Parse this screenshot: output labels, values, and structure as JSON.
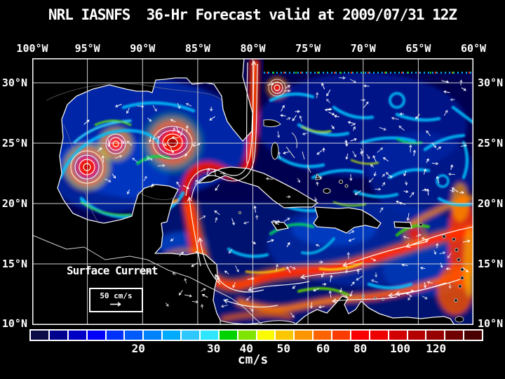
{
  "title": "NRL IASNFS  36-Hr Forecast valid at 2009/07/31 12Z",
  "colors": {
    "background": "#000000",
    "ocean": "#000050",
    "land": "#000000",
    "coastline": "#f0f0f0",
    "island_outline": "#b0b0b0",
    "grid": "#dcdcdc",
    "arrows": "#ffffff",
    "text": "#ffffff",
    "colorbar_border": "#ffffff"
  },
  "axes": {
    "top": [
      {
        "label": "100°W",
        "pct": 0
      },
      {
        "label": "95°W",
        "pct": 12.5
      },
      {
        "label": "90°W",
        "pct": 25
      },
      {
        "label": "85°W",
        "pct": 37.5
      },
      {
        "label": "80°W",
        "pct": 50
      },
      {
        "label": "75°W",
        "pct": 62.5
      },
      {
        "label": "70°W",
        "pct": 75
      },
      {
        "label": "65°W",
        "pct": 87.5
      },
      {
        "label": "60°W",
        "pct": 100
      }
    ],
    "left": [
      {
        "label": "30°N",
        "pct": 9.2
      },
      {
        "label": "25°N",
        "pct": 31.8
      },
      {
        "label": "20°N",
        "pct": 54.5
      },
      {
        "label": "15°N",
        "pct": 77.1
      },
      {
        "label": "10°N",
        "pct": 99.4
      }
    ],
    "right": [
      {
        "label": "30°N",
        "pct": 9.2
      },
      {
        "label": "25°N",
        "pct": 31.8
      },
      {
        "label": "20°N",
        "pct": 54.5
      },
      {
        "label": "15°N",
        "pct": 77.1
      },
      {
        "label": "10°N",
        "pct": 99.4
      }
    ]
  },
  "legend": {
    "title": "Surface Current",
    "scale_label": "50 cm/s"
  },
  "colorbar": {
    "units": "cm/s",
    "segments": [
      "#0c0c49",
      "#00008f",
      "#0000c4",
      "#0202fb",
      "#0032fb",
      "#005afb",
      "#0082fb",
      "#00aaff",
      "#2ec8ff",
      "#30e6ff",
      "#00d200",
      "#7ee400",
      "#fbfb00",
      "#fbc800",
      "#fb9600",
      "#fb6400",
      "#fb3c00",
      "#fb0000",
      "#ee0000",
      "#d20000",
      "#b40000",
      "#960000",
      "#700000",
      "#4b0000"
    ],
    "ticks": [
      {
        "label": "20",
        "pct": 24.0
      },
      {
        "label": "30",
        "pct": 40.6
      },
      {
        "label": "40",
        "pct": 47.8
      },
      {
        "label": "50",
        "pct": 56.0
      },
      {
        "label": "60",
        "pct": 64.7
      },
      {
        "label": "80",
        "pct": 72.9
      },
      {
        "label": "100",
        "pct": 81.7
      },
      {
        "label": "120",
        "pct": 89.6
      }
    ]
  },
  "chart_data": {
    "type": "heatmap",
    "title": "NRL IASNFS  36-Hr Forecast valid at 2009/07/31 12Z",
    "variable": "Surface Current",
    "units": "cm/s",
    "x_axis": {
      "ticks": [
        "100°W",
        "95°W",
        "90°W",
        "85°W",
        "80°W",
        "75°W",
        "70°W",
        "65°W",
        "60°W"
      ]
    },
    "y_axis": {
      "ticks": [
        "30°N",
        "25°N",
        "20°N",
        "15°N",
        "10°N"
      ]
    },
    "colorbar_tick_values": [
      20,
      30,
      40,
      50,
      60,
      80,
      100,
      120
    ],
    "colorbar_colors": [
      "#0c0c49",
      "#00008f",
      "#0000c4",
      "#0202fb",
      "#0032fb",
      "#005afb",
      "#0082fb",
      "#00aaff",
      "#2ec8ff",
      "#30e6ff",
      "#00d200",
      "#7ee400",
      "#fbfb00",
      "#fbc800",
      "#fb9600",
      "#fb6400",
      "#fb3c00",
      "#fb0000",
      "#ee0000",
      "#d20000",
      "#b40000",
      "#960000",
      "#700000",
      "#4b0000"
    ],
    "vector_reference": "50 cm/s",
    "legend_position": "bottom"
  }
}
